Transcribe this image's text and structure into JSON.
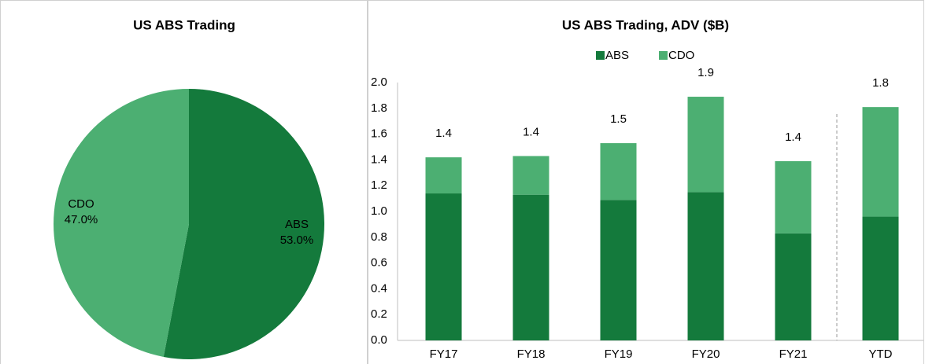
{
  "chart_data": [
    {
      "type": "pie",
      "title": "US ABS Trading",
      "categories": [
        "ABS",
        "CDO"
      ],
      "values": [
        53.0,
        47.0
      ],
      "value_labels": [
        "53.0%",
        "47.0%"
      ],
      "colors": [
        "#147a3c",
        "#4caf72"
      ]
    },
    {
      "type": "bar",
      "stacked": true,
      "title": "US ABS Trading, ADV ($B)",
      "categories": [
        "FY17",
        "FY18",
        "FY19",
        "FY20",
        "FY21",
        "YTD"
      ],
      "series": [
        {
          "name": "ABS",
          "color": "#147a3c",
          "values": [
            1.14,
            1.13,
            1.09,
            1.15,
            0.83,
            0.96
          ]
        },
        {
          "name": "CDO",
          "color": "#4caf72",
          "values": [
            0.28,
            0.3,
            0.44,
            0.74,
            0.56,
            0.85
          ]
        }
      ],
      "total_labels": [
        "1.4",
        "1.4",
        "1.5",
        "1.9",
        "1.4",
        "1.8"
      ],
      "ylim": [
        0,
        2.0
      ],
      "yticks": [
        {
          "value": 0,
          "label": "0.0"
        },
        0.2,
        0.4,
        0.6,
        0.8,
        {
          "value": 1.0,
          "label": "1.0"
        },
        1.2,
        1.4,
        1.6,
        1.8,
        {
          "value": 2.0,
          "label": "2.0"
        }
      ],
      "legend": "top"
    }
  ]
}
